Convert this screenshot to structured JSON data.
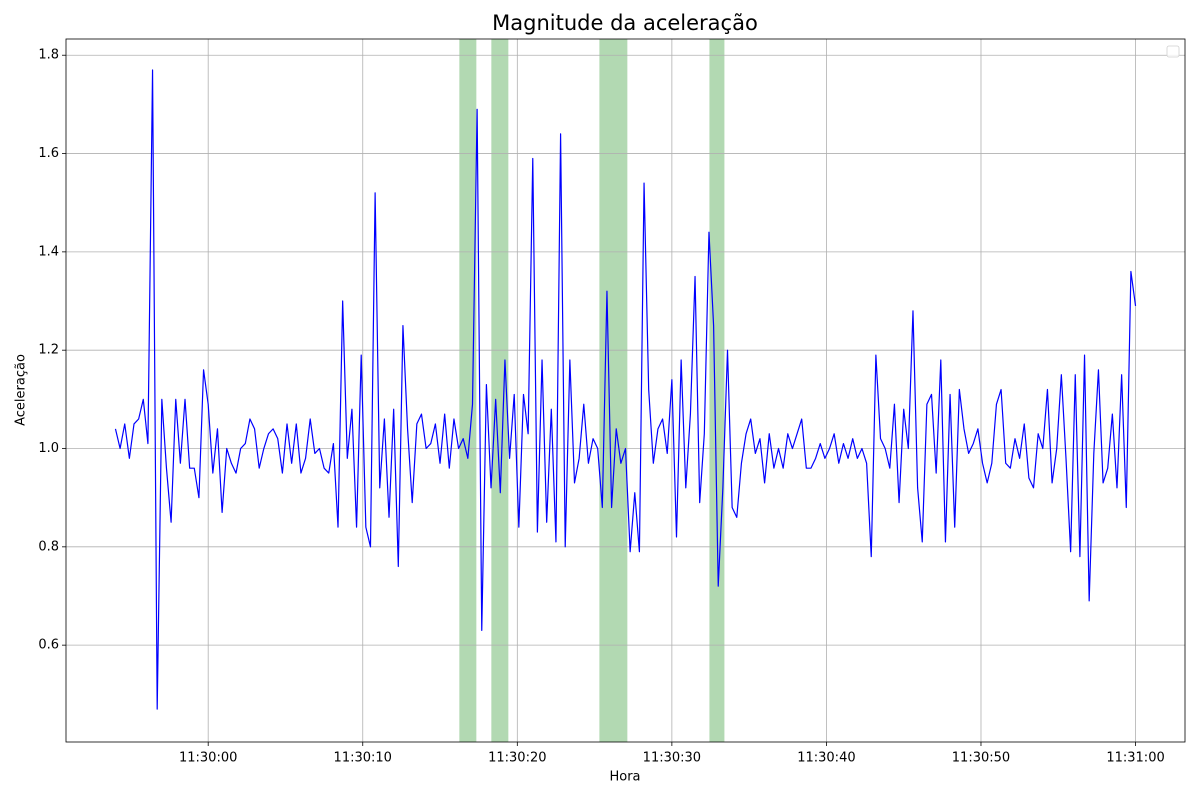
{
  "chart_data": {
    "type": "line",
    "title": "Magnitude da aceleração",
    "xlabel": "Hora",
    "ylabel": "Aceleração",
    "color": "#0000ff",
    "grid": true,
    "legend": "upper right",
    "highlight_color": "#008000",
    "highlight_alpha": 0.3,
    "highlights": [
      [
        "11:30:16.25",
        "11:30:17.35"
      ],
      [
        "11:30:18.32",
        "11:30:19.42"
      ],
      [
        "11:30:25.31",
        "11:30:27.12"
      ],
      [
        "11:30:32.43",
        "11:30:33.40"
      ]
    ],
    "xlim": [
      "11:29:50.8",
      "11:31:03.2"
    ],
    "xticks": [
      "11:30:00",
      "11:30:10",
      "11:30:20",
      "11:30:30",
      "11:30:40",
      "11:30:50",
      "11:31:00"
    ],
    "ylim": [
      0.403,
      1.833
    ],
    "yticks": [
      0.6,
      0.8,
      {
        "value": 1,
        "label": "1.0"
      },
      1.2,
      1.4,
      1.6,
      1.8
    ],
    "x": [
      "11:29:54.0",
      "11:29:54.3",
      "11:29:54.6",
      "11:29:54.9",
      "11:29:55.2",
      "11:29:55.5",
      "11:29:55.8",
      "11:29:56.1",
      "11:29:56.4",
      "11:29:56.7",
      "11:29:57.0",
      "11:29:57.3",
      "11:29:57.6",
      "11:29:57.9",
      "11:29:58.2",
      "11:29:58.5",
      "11:29:58.8",
      "11:29:59.1",
      "11:29:59.4",
      "11:29:59.7",
      "11:30:00.0",
      "11:30:00.3",
      "11:30:00.6",
      "11:30:00.9",
      "11:30:01.2",
      "11:30:01.5",
      "11:30:01.8",
      "11:30:02.1",
      "11:30:02.4",
      "11:30:02.7",
      "11:30:03.0",
      "11:30:03.3",
      "11:30:03.6",
      "11:30:03.9",
      "11:30:04.2",
      "11:30:04.5",
      "11:30:04.8",
      "11:30:05.1",
      "11:30:05.4",
      "11:30:05.7",
      "11:30:06.0",
      "11:30:06.3",
      "11:30:06.6",
      "11:30:06.9",
      "11:30:07.2",
      "11:30:07.5",
      "11:30:07.8",
      "11:30:08.1",
      "11:30:08.4",
      "11:30:08.7",
      "11:30:09.0",
      "11:30:09.3",
      "11:30:09.6",
      "11:30:09.9",
      "11:30:10.2",
      "11:30:10.5",
      "11:30:10.8",
      "11:30:11.1",
      "11:30:11.4",
      "11:30:11.7",
      "11:30:12.0",
      "11:30:12.3",
      "11:30:12.6",
      "11:30:12.9",
      "11:30:13.2",
      "11:30:13.5",
      "11:30:13.8",
      "11:30:14.1",
      "11:30:14.4",
      "11:30:14.7",
      "11:30:15.0",
      "11:30:15.3",
      "11:30:15.6",
      "11:30:15.9",
      "11:30:16.2",
      "11:30:16.5",
      "11:30:16.8",
      "11:30:17.1",
      "11:30:17.4",
      "11:30:17.7",
      "11:30:18.0",
      "11:30:18.3",
      "11:30:18.6",
      "11:30:18.9",
      "11:30:19.2",
      "11:30:19.5",
      "11:30:19.8",
      "11:30:20.1",
      "11:30:20.4",
      "11:30:20.7",
      "11:30:21.0",
      "11:30:21.3",
      "11:30:21.6",
      "11:30:21.9",
      "11:30:22.2",
      "11:30:22.5",
      "11:30:22.8",
      "11:30:23.1",
      "11:30:23.4",
      "11:30:23.7",
      "11:30:24.0",
      "11:30:24.3",
      "11:30:24.6",
      "11:30:24.9",
      "11:30:25.2",
      "11:30:25.5",
      "11:30:25.8",
      "11:30:26.1",
      "11:30:26.4",
      "11:30:26.7",
      "11:30:27.0",
      "11:30:27.3",
      "11:30:27.6",
      "11:30:27.9",
      "11:30:28.2",
      "11:30:28.5",
      "11:30:28.8",
      "11:30:29.1",
      "11:30:29.4",
      "11:30:29.7",
      "11:30:30.0",
      "11:30:30.3",
      "11:30:30.6",
      "11:30:30.9",
      "11:30:31.2",
      "11:30:31.5",
      "11:30:31.8",
      "11:30:32.1",
      "11:30:32.4",
      "11:30:32.7",
      "11:30:33.0",
      "11:30:33.3",
      "11:30:33.6",
      "11:30:33.9",
      "11:30:34.2",
      "11:30:34.5",
      "11:30:34.8",
      "11:30:35.1",
      "11:30:35.4",
      "11:30:35.7",
      "11:30:36.0",
      "11:30:36.3",
      "11:30:36.6",
      "11:30:36.9",
      "11:30:37.2",
      "11:30:37.5",
      "11:30:37.8",
      "11:30:38.1",
      "11:30:38.4",
      "11:30:38.7",
      "11:30:39.0",
      "11:30:39.3",
      "11:30:39.6",
      "11:30:39.9",
      "11:30:40.2",
      "11:30:40.5",
      "11:30:40.8",
      "11:30:41.1",
      "11:30:41.4",
      "11:30:41.7",
      "11:30:42.0",
      "11:30:42.3",
      "11:30:42.6",
      "11:30:42.9",
      "11:30:43.2",
      "11:30:43.5",
      "11:30:43.8",
      "11:30:44.1",
      "11:30:44.4",
      "11:30:44.7",
      "11:30:45.0",
      "11:30:45.3",
      "11:30:45.6",
      "11:30:45.9",
      "11:30:46.2",
      "11:30:46.5",
      "11:30:46.8",
      "11:30:47.1",
      "11:30:47.4",
      "11:30:47.7",
      "11:30:48.0",
      "11:30:48.3",
      "11:30:48.6",
      "11:30:48.9",
      "11:30:49.2",
      "11:30:49.5",
      "11:30:49.8",
      "11:30:50.1",
      "11:30:50.4",
      "11:30:50.7",
      "11:30:51.0",
      "11:30:51.3",
      "11:30:51.6",
      "11:30:51.9",
      "11:30:52.2",
      "11:30:52.5",
      "11:30:52.8",
      "11:30:53.1",
      "11:30:53.4",
      "11:30:53.7",
      "11:30:54.0",
      "11:30:54.3",
      "11:30:54.6",
      "11:30:54.9",
      "11:30:55.2",
      "11:30:55.5",
      "11:30:55.8",
      "11:30:56.1",
      "11:30:56.4",
      "11:30:56.7",
      "11:30:57.0",
      "11:30:57.3",
      "11:30:57.6",
      "11:30:57.9",
      "11:30:58.2",
      "11:30:58.5",
      "11:30:58.8",
      "11:30:59.1",
      "11:30:59.4",
      "11:30:59.7",
      "11:31:00.0"
    ],
    "values": [
      1.04,
      1.0,
      1.05,
      0.98,
      1.05,
      1.06,
      1.1,
      1.01,
      1.77,
      0.47,
      1.1,
      0.96,
      0.85,
      1.1,
      0.97,
      1.1,
      0.96,
      0.96,
      0.9,
      1.16,
      1.09,
      0.95,
      1.04,
      0.87,
      1.0,
      0.97,
      0.95,
      1.0,
      1.01,
      1.06,
      1.04,
      0.96,
      1.0,
      1.03,
      1.04,
      1.02,
      0.95,
      1.05,
      0.97,
      1.05,
      0.95,
      0.98,
      1.06,
      0.99,
      1.0,
      0.96,
      0.95,
      1.01,
      0.84,
      1.3,
      0.98,
      1.08,
      0.84,
      1.19,
      0.84,
      0.8,
      1.52,
      0.92,
      1.06,
      0.86,
      1.08,
      0.76,
      1.25,
      1.04,
      0.89,
      1.05,
      1.07,
      1.0,
      1.01,
      1.05,
      0.97,
      1.07,
      0.96,
      1.06,
      1.0,
      1.02,
      0.98,
      1.09,
      1.69,
      0.63,
      1.13,
      0.92,
      1.1,
      0.91,
      1.18,
      0.98,
      1.11,
      0.84,
      1.11,
      1.03,
      1.59,
      0.83,
      1.18,
      0.85,
      1.08,
      0.81,
      1.64,
      0.8,
      1.18,
      0.93,
      0.98,
      1.09,
      0.97,
      1.02,
      1.0,
      0.88,
      1.32,
      0.88,
      1.04,
      0.97,
      1.0,
      0.79,
      0.91,
      0.79,
      1.54,
      1.12,
      0.97,
      1.04,
      1.06,
      0.99,
      1.14,
      0.82,
      1.18,
      0.92,
      1.07,
      1.35,
      0.89,
      1.03,
      1.44,
      1.25,
      0.72,
      0.92,
      1.2,
      0.88,
      0.86,
      0.97,
      1.03,
      1.06,
      0.99,
      1.02,
      0.93,
      1.03,
      0.96,
      1.0,
      0.96,
      1.03,
      1.0,
      1.03,
      1.06,
      0.96,
      0.96,
      0.98,
      1.01,
      0.98,
      1.0,
      1.03,
      0.97,
      1.01,
      0.98,
      1.02,
      0.98,
      1.0,
      0.97,
      0.78,
      1.19,
      1.02,
      1.0,
      0.96,
      1.09,
      0.89,
      1.08,
      1.0,
      1.28,
      0.92,
      0.81,
      1.09,
      1.11,
      0.95,
      1.18,
      0.81,
      1.11,
      0.84,
      1.12,
      1.04,
      0.99,
      1.01,
      1.04,
      0.97,
      0.93,
      0.97,
      1.09,
      1.12,
      0.97,
      0.96,
      1.02,
      0.98,
      1.05,
      0.94,
      0.92,
      1.03,
      1.0,
      1.12,
      0.93,
      1.0,
      1.15,
      0.98,
      0.79,
      1.15,
      0.78,
      1.19,
      0.69,
      0.99,
      1.16,
      0.93,
      0.96,
      1.07,
      0.92,
      1.15,
      0.88,
      1.36,
      1.29
    ]
  }
}
